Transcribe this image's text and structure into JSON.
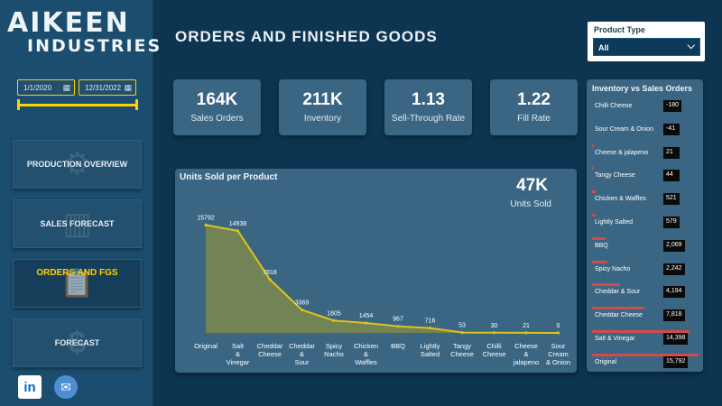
{
  "brand": {
    "line1": "AIKEEN",
    "line2": "INDUSTRIES"
  },
  "date_range": {
    "start": "1/1/2020",
    "end": "12/31/2022"
  },
  "nav": [
    {
      "label": "PRODUCTION OVERVIEW",
      "icon": "factory-icon",
      "active": false
    },
    {
      "label": "SALES FORECAST",
      "icon": "warehouse-icon",
      "active": false
    },
    {
      "label": "ORDERS AND FGS",
      "icon": "clipboard-delivery-icon",
      "active": true
    },
    {
      "label": "FORECAST",
      "icon": "money-chart-icon",
      "active": false
    }
  ],
  "social": {
    "linkedin": "in",
    "mail_icon": "mail-icon"
  },
  "page_title": "ORDERS AND FINISHED GOODS",
  "kpis": [
    {
      "value": "164K",
      "label": "Sales Orders"
    },
    {
      "value": "211K",
      "label": "Inventory"
    },
    {
      "value": "1.13",
      "label": "Sell-Through Rate"
    },
    {
      "value": "1.22",
      "label": "Fill Rate"
    }
  ],
  "slicer": {
    "title": "Product Type",
    "value": "All"
  },
  "chart_data": {
    "type": "area",
    "title": "Units Sold per Product",
    "summary_value": "47K",
    "summary_label": "Units Sold",
    "categories": [
      "Original",
      "Salt & Vinegar",
      "Cheddar Cheese",
      "Cheddar & Sour",
      "Spicy Nacho",
      "Chicken & Waffles",
      "BBQ",
      "Lightly Salted",
      "Tangy Cheese",
      "Chilli Cheese",
      "Cheese & jalapeno",
      "Sour Cream & Onion"
    ],
    "values": [
      15792,
      14938,
      7818,
      3369,
      1805,
      1454,
      967,
      716,
      53,
      30,
      21,
      0
    ],
    "value_labels": [
      "15792",
      "14938",
      "7818",
      "3369",
      "1805",
      "1454",
      "967",
      "716",
      "53",
      "30",
      "21",
      "0"
    ],
    "ylim": [
      0,
      16500
    ],
    "line_color": "#e0c21a",
    "fill_color": "#7d8a4e"
  },
  "inventory_vs_sales": {
    "title": "Inventory vs Sales Orders",
    "bar_color": "#d24a4a",
    "max": 15792,
    "rows": [
      {
        "name": "Chilli Cheese",
        "value": -180,
        "label": "-180"
      },
      {
        "name": "Sour Cream & Onion",
        "value": -41,
        "label": "-41"
      },
      {
        "name": "Cheese & jalapeno",
        "value": 21,
        "label": "21"
      },
      {
        "name": "Tangy Cheese",
        "value": 44,
        "label": "44"
      },
      {
        "name": "Chicken & Waffles",
        "value": 521,
        "label": "521"
      },
      {
        "name": "Lightly Salted",
        "value": 579,
        "label": "579"
      },
      {
        "name": "BBQ",
        "value": 2069,
        "label": "2,069"
      },
      {
        "name": "Spicy Nacho",
        "value": 2242,
        "label": "2,242"
      },
      {
        "name": "Cheddar & Sour",
        "value": 4194,
        "label": "4,194"
      },
      {
        "name": "Cheddar Cheese",
        "value": 7818,
        "label": "7,818"
      },
      {
        "name": "Salt & Vinegar",
        "value": 14398,
        "label": "14,398"
      },
      {
        "name": "Original",
        "value": 15792,
        "label": "15,792"
      }
    ]
  }
}
